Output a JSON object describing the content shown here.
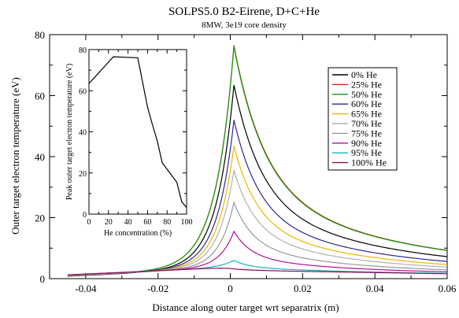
{
  "chart_data": {
    "type": "line",
    "title": "SOLPS5.0 B2-Eirene, D+C+He",
    "subtitle": "8MW, 3e19 core density",
    "xlabel": "Distance along outer target wrt separatrix (m)",
    "ylabel": "Outer target electron temperature (eV)",
    "xlim": [
      -0.05,
      0.06
    ],
    "ylim": [
      0,
      80
    ],
    "xticks": [
      -0.04,
      -0.02,
      0,
      0.02,
      0.04,
      0.06
    ],
    "xtick_labels": [
      "-0.04",
      "-0.02",
      "0",
      "0.02",
      "0.04",
      "0.06"
    ],
    "yticks": [
      0,
      20,
      40,
      60,
      80
    ],
    "ytick_labels": [
      "0",
      "20",
      "40",
      "60",
      "80"
    ],
    "legend_position": "top-right",
    "series": [
      {
        "name": "0% He",
        "color": "#000000",
        "peak": 63.5
      },
      {
        "name": "25% He",
        "color": "#d62020",
        "peak": 76.5
      },
      {
        "name": "50% He",
        "color": "#10a010",
        "peak": 76.0
      },
      {
        "name": "60% He",
        "color": "#2a2a8c",
        "peak": 52.0
      },
      {
        "name": "65% He",
        "color": "#f0b400",
        "peak": 43.5
      },
      {
        "name": "70% He",
        "color": "#b0b0b0",
        "peak": 35.5
      },
      {
        "name": "75% He",
        "color": "#999999",
        "peak": 25.0
      },
      {
        "name": "90% He",
        "color": "#b0109c",
        "peak": 15.5
      },
      {
        "name": "95% He",
        "color": "#10b8c0",
        "peak": 6.0
      },
      {
        "name": "100% He",
        "color": "#9a0a5a",
        "peak": 3.2
      }
    ],
    "inset": {
      "type": "line",
      "xlabel": "He concentration (%)",
      "ylabel": "Peak outer target electron temperature (eV)",
      "xlim": [
        0,
        100
      ],
      "ylim": [
        0,
        80
      ],
      "xticks": [
        0,
        20,
        40,
        60,
        80,
        100
      ],
      "xtick_labels": [
        "0",
        "20",
        "40",
        "60",
        "80",
        "100"
      ],
      "yticks": [
        0,
        20,
        40,
        60,
        80
      ],
      "ytick_labels": [
        "0",
        "20",
        "40",
        "60",
        "80"
      ],
      "x": [
        0,
        25,
        50,
        60,
        65,
        70,
        75,
        90,
        95,
        100
      ],
      "y": [
        63.5,
        76.5,
        76.0,
        52.0,
        43.5,
        35.5,
        25.0,
        15.5,
        6.0,
        3.2
      ]
    }
  }
}
